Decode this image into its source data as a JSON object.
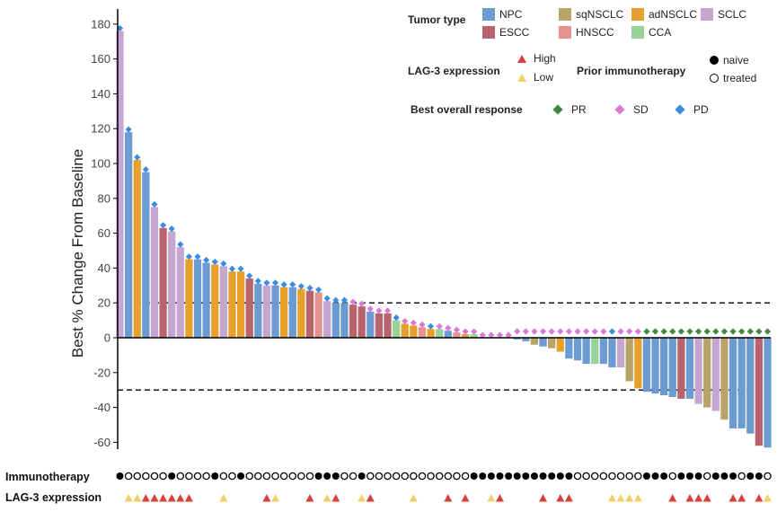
{
  "chart_data": {
    "type": "bar",
    "title": "",
    "ylabel": "Best % Change From Baseline",
    "xlabel": "",
    "ylim": [
      -65,
      185
    ],
    "yticks": [
      -60,
      -40,
      -20,
      0,
      20,
      40,
      60,
      80,
      100,
      120,
      140,
      160,
      180
    ],
    "reference_lines": [
      20,
      -30
    ],
    "tumor_types": [
      {
        "name": "NPC",
        "color": "#6b9bd1"
      },
      {
        "name": "sqNSCLC",
        "color": "#b8a469"
      },
      {
        "name": "adNSCLC",
        "color": "#e5a12b"
      },
      {
        "name": "SCLC",
        "color": "#c5a6d0"
      },
      {
        "name": "ESCC",
        "color": "#b9646c"
      },
      {
        "name": "HNSCC",
        "color": "#e6938f"
      },
      {
        "name": "CCA",
        "color": "#98d298"
      }
    ],
    "responses": [
      {
        "name": "PR",
        "color": "#3f8a3f"
      },
      {
        "name": "SD",
        "color": "#d77ad8"
      },
      {
        "name": "PD",
        "color": "#3c8de0"
      }
    ],
    "lag3_levels": [
      {
        "name": "High",
        "color": "#d9403a"
      },
      {
        "name": "Low",
        "color": "#f3cf6a"
      }
    ],
    "prior_levels": [
      "naive",
      "treated"
    ],
    "patients": [
      {
        "value": 176,
        "type": "SCLC",
        "response": "PD",
        "prior": "naive",
        "lag3": ""
      },
      {
        "value": 118,
        "type": "NPC",
        "response": "PD",
        "prior": "treated",
        "lag3": "Low"
      },
      {
        "value": 102,
        "type": "adNSCLC",
        "response": "PD",
        "prior": "treated",
        "lag3": "Low"
      },
      {
        "value": 95,
        "type": "NPC",
        "response": "PD",
        "prior": "treated",
        "lag3": "High"
      },
      {
        "value": 75,
        "type": "SCLC",
        "response": "PD",
        "prior": "treated",
        "lag3": "High"
      },
      {
        "value": 63,
        "type": "ESCC",
        "response": "PD",
        "prior": "treated",
        "lag3": "High"
      },
      {
        "value": 61,
        "type": "SCLC",
        "response": "PD",
        "prior": "naive",
        "lag3": "High"
      },
      {
        "value": 52,
        "type": "SCLC",
        "response": "PD",
        "prior": "treated",
        "lag3": "High"
      },
      {
        "value": 45,
        "type": "adNSCLC",
        "response": "PD",
        "prior": "treated",
        "lag3": "High"
      },
      {
        "value": 45,
        "type": "NPC",
        "response": "PD",
        "prior": "treated",
        "lag3": ""
      },
      {
        "value": 43,
        "type": "NPC",
        "response": "PD",
        "prior": "treated",
        "lag3": ""
      },
      {
        "value": 42,
        "type": "adNSCLC",
        "response": "PD",
        "prior": "naive",
        "lag3": ""
      },
      {
        "value": 41,
        "type": "SCLC",
        "response": "PD",
        "prior": "treated",
        "lag3": "Low"
      },
      {
        "value": 38,
        "type": "adNSCLC",
        "response": "PD",
        "prior": "treated",
        "lag3": ""
      },
      {
        "value": 38,
        "type": "adNSCLC",
        "response": "PD",
        "prior": "naive",
        "lag3": ""
      },
      {
        "value": 34,
        "type": "ESCC",
        "response": "PD",
        "prior": "treated",
        "lag3": ""
      },
      {
        "value": 31,
        "type": "NPC",
        "response": "PD",
        "prior": "treated",
        "lag3": ""
      },
      {
        "value": 30,
        "type": "SCLC",
        "response": "PD",
        "prior": "treated",
        "lag3": "High"
      },
      {
        "value": 30,
        "type": "NPC",
        "response": "PD",
        "prior": "treated",
        "lag3": "Low"
      },
      {
        "value": 29,
        "type": "adNSCLC",
        "response": "PD",
        "prior": "treated",
        "lag3": ""
      },
      {
        "value": 29,
        "type": "NPC",
        "response": "PD",
        "prior": "treated",
        "lag3": ""
      },
      {
        "value": 28,
        "type": "adNSCLC",
        "response": "PD",
        "prior": "treated",
        "lag3": ""
      },
      {
        "value": 27,
        "type": "ESCC",
        "response": "PD",
        "prior": "treated",
        "lag3": "High"
      },
      {
        "value": 26,
        "type": "HNSCC",
        "response": "PD",
        "prior": "naive",
        "lag3": ""
      },
      {
        "value": 21,
        "type": "SCLC",
        "response": "PD",
        "prior": "naive",
        "lag3": "Low"
      },
      {
        "value": 20,
        "type": "NPC",
        "response": "PD",
        "prior": "naive",
        "lag3": "High"
      },
      {
        "value": 20,
        "type": "NPC",
        "response": "PD",
        "prior": "treated",
        "lag3": ""
      },
      {
        "value": 19,
        "type": "ESCC",
        "response": "SD",
        "prior": "treated",
        "lag3": ""
      },
      {
        "value": 18,
        "type": "ESCC",
        "response": "SD",
        "prior": "naive",
        "lag3": "Low"
      },
      {
        "value": 15,
        "type": "NPC",
        "response": "SD",
        "prior": "treated",
        "lag3": "High"
      },
      {
        "value": 14,
        "type": "ESCC",
        "response": "SD",
        "prior": "treated",
        "lag3": ""
      },
      {
        "value": 14,
        "type": "ESCC",
        "response": "SD",
        "prior": "treated",
        "lag3": ""
      },
      {
        "value": 10,
        "type": "CCA",
        "response": "PD",
        "prior": "treated",
        "lag3": ""
      },
      {
        "value": 8,
        "type": "adNSCLC",
        "response": "SD",
        "prior": "treated",
        "lag3": ""
      },
      {
        "value": 7,
        "type": "adNSCLC",
        "response": "SD",
        "prior": "treated",
        "lag3": "Low"
      },
      {
        "value": 6,
        "type": "HNSCC",
        "response": "SD",
        "prior": "treated",
        "lag3": ""
      },
      {
        "value": 5,
        "type": "adNSCLC",
        "response": "PD",
        "prior": "treated",
        "lag3": ""
      },
      {
        "value": 5,
        "type": "CCA",
        "response": "SD",
        "prior": "treated",
        "lag3": ""
      },
      {
        "value": 4,
        "type": "NPC",
        "response": "SD",
        "prior": "treated",
        "lag3": "High"
      },
      {
        "value": 3,
        "type": "HNSCC",
        "response": "SD",
        "prior": "treated",
        "lag3": ""
      },
      {
        "value": 2,
        "type": "adNSCLC",
        "response": "SD",
        "prior": "treated",
        "lag3": "High"
      },
      {
        "value": 2,
        "type": "CCA",
        "response": "SD",
        "prior": "naive",
        "lag3": ""
      },
      {
        "value": 0,
        "type": "NPC",
        "response": "SD",
        "prior": "naive",
        "lag3": ""
      },
      {
        "value": 0,
        "type": "NPC",
        "response": "SD",
        "prior": "naive",
        "lag3": "Low"
      },
      {
        "value": 0,
        "type": "NPC",
        "response": "SD",
        "prior": "naive",
        "lag3": "High"
      },
      {
        "value": 0,
        "type": "NPC",
        "response": "SD",
        "prior": "naive",
        "lag3": ""
      },
      {
        "value": -1,
        "type": "NPC",
        "response": "SD",
        "prior": "naive",
        "lag3": ""
      },
      {
        "value": -2,
        "type": "NPC",
        "response": "SD",
        "prior": "naive",
        "lag3": ""
      },
      {
        "value": -4,
        "type": "sqNSCLC",
        "response": "SD",
        "prior": "naive",
        "lag3": ""
      },
      {
        "value": -5,
        "type": "NPC",
        "response": "SD",
        "prior": "naive",
        "lag3": "High"
      },
      {
        "value": -6,
        "type": "sqNSCLC",
        "response": "SD",
        "prior": "naive",
        "lag3": ""
      },
      {
        "value": -8,
        "type": "adNSCLC",
        "response": "SD",
        "prior": "naive",
        "lag3": "High"
      },
      {
        "value": -12,
        "type": "NPC",
        "response": "SD",
        "prior": "naive",
        "lag3": "High"
      },
      {
        "value": -13,
        "type": "NPC",
        "response": "SD",
        "prior": "treated",
        "lag3": ""
      },
      {
        "value": -15,
        "type": "NPC",
        "response": "SD",
        "prior": "treated",
        "lag3": ""
      },
      {
        "value": -15,
        "type": "CCA",
        "response": "SD",
        "prior": "treated",
        "lag3": ""
      },
      {
        "value": -15,
        "type": "NPC",
        "response": "SD",
        "prior": "treated",
        "lag3": ""
      },
      {
        "value": -17,
        "type": "NPC",
        "response": "PD",
        "prior": "treated",
        "lag3": "Low"
      },
      {
        "value": -17,
        "type": "SCLC",
        "response": "SD",
        "prior": "treated",
        "lag3": "Low"
      },
      {
        "value": -25,
        "type": "sqNSCLC",
        "response": "SD",
        "prior": "treated",
        "lag3": "Low"
      },
      {
        "value": -29,
        "type": "adNSCLC",
        "response": "SD",
        "prior": "treated",
        "lag3": "Low"
      },
      {
        "value": -31,
        "type": "NPC",
        "response": "PR",
        "prior": "naive",
        "lag3": ""
      },
      {
        "value": -32,
        "type": "NPC",
        "response": "PR",
        "prior": "naive",
        "lag3": ""
      },
      {
        "value": -33,
        "type": "NPC",
        "response": "PR",
        "prior": "naive",
        "lag3": ""
      },
      {
        "value": -34,
        "type": "NPC",
        "response": "PR",
        "prior": "treated",
        "lag3": "High"
      },
      {
        "value": -35,
        "type": "ESCC",
        "response": "PR",
        "prior": "naive",
        "lag3": ""
      },
      {
        "value": -35,
        "type": "NPC",
        "response": "PR",
        "prior": "naive",
        "lag3": "High"
      },
      {
        "value": -38,
        "type": "SCLC",
        "response": "PR",
        "prior": "naive",
        "lag3": "High"
      },
      {
        "value": -40,
        "type": "sqNSCLC",
        "response": "PR",
        "prior": "treated",
        "lag3": "High"
      },
      {
        "value": -42,
        "type": "SCLC",
        "response": "PR",
        "prior": "naive",
        "lag3": ""
      },
      {
        "value": -47,
        "type": "sqNSCLC",
        "response": "PR",
        "prior": "naive",
        "lag3": ""
      },
      {
        "value": -52,
        "type": "NPC",
        "response": "PR",
        "prior": "naive",
        "lag3": "High"
      },
      {
        "value": -52,
        "type": "NPC",
        "response": "PR",
        "prior": "treated",
        "lag3": "High"
      },
      {
        "value": -55,
        "type": "NPC",
        "response": "PR",
        "prior": "naive",
        "lag3": ""
      },
      {
        "value": -62,
        "type": "ESCC",
        "response": "PR",
        "prior": "naive",
        "lag3": "High"
      },
      {
        "value": -63,
        "type": "NPC",
        "response": "PR",
        "prior": "treated",
        "lag3": "Low"
      }
    ]
  },
  "legend": {
    "tumor_type_title": "Tumor type",
    "lag3_title": "LAG-3 expression",
    "prior_title": "Prior immunotherapy",
    "response_title": "Best overall response"
  },
  "row_labels": {
    "immunotherapy": "Immunotherapy",
    "lag3": "LAG-3 expression"
  }
}
